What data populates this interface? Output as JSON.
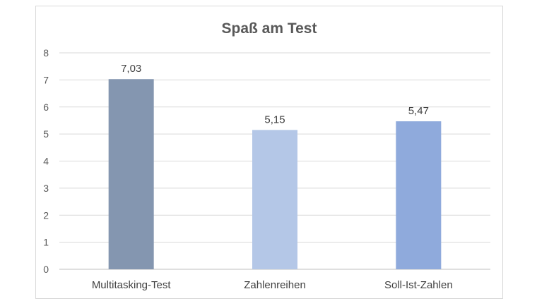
{
  "chart_data": {
    "type": "bar",
    "title": "Spaß am Test",
    "categories": [
      "Multitasking-Test",
      "Zahlenreihen",
      "Soll-Ist-Zahlen"
    ],
    "values": [
      7.03,
      5.15,
      5.47
    ],
    "value_labels": [
      "7,03",
      "5,15",
      "5,47"
    ],
    "bar_colors": [
      "#8496b0",
      "#b4c7e7",
      "#8faadc"
    ],
    "ylim": [
      0,
      8
    ],
    "yticks": [
      0,
      1,
      2,
      3,
      4,
      5,
      6,
      7,
      8
    ],
    "grid": true,
    "xlabel": "",
    "ylabel": ""
  }
}
